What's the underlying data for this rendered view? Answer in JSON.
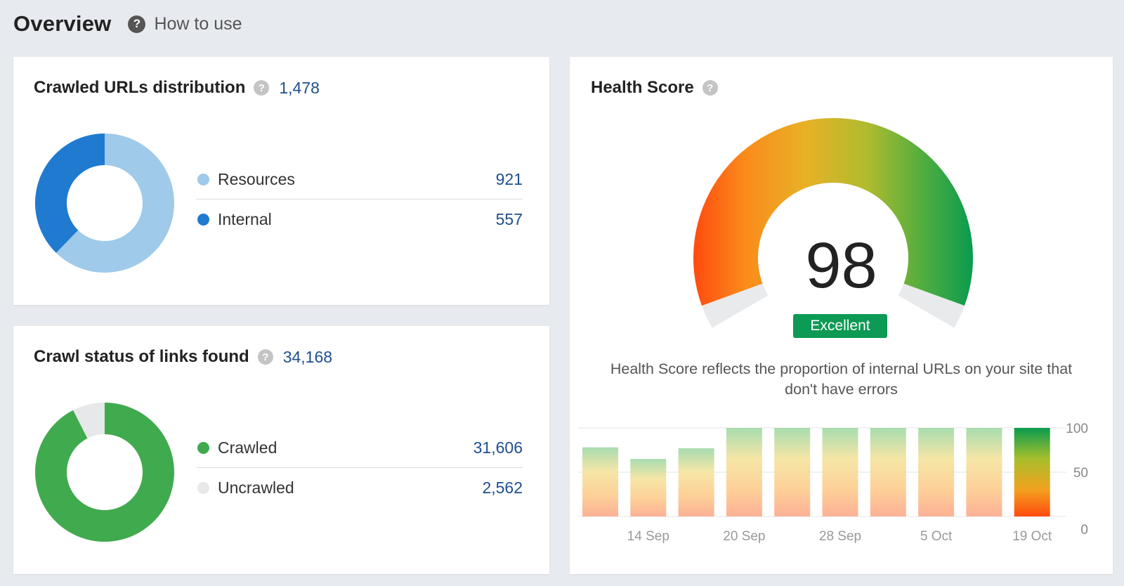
{
  "header": {
    "title": "Overview",
    "help_icon": "?",
    "how_to_use": "How to use"
  },
  "crawled_urls": {
    "title": "Crawled URLs distribution",
    "total": "1,478",
    "items": [
      {
        "label": "Resources",
        "value": "921",
        "count": 921,
        "color": "#9fcaea"
      },
      {
        "label": "Internal",
        "value": "557",
        "count": 557,
        "color": "#1f7ad0"
      }
    ]
  },
  "crawl_status": {
    "title": "Crawl status of links found",
    "total": "34,168",
    "items": [
      {
        "label": "Crawled",
        "value": "31,606",
        "count": 31606,
        "color": "#40aa4e"
      },
      {
        "label": "Uncrawled",
        "value": "2,562",
        "count": 2562,
        "color": "#e6e8ea"
      }
    ]
  },
  "health_score": {
    "title": "Health Score",
    "score": "98",
    "rating": "Excellent",
    "description": "Health Score reflects the proportion of internal URLs on your site that don't have errors",
    "colors": {
      "badge": "#0c9a55",
      "low": "#ff4a0f",
      "mid": "#e8b126",
      "high": "#0a9b4f"
    }
  },
  "chart_data": {
    "type": "bar",
    "values": [
      78,
      65,
      77,
      100,
      100,
      100,
      100,
      100,
      100,
      100
    ],
    "x_tick_labels": [
      "14 Sep",
      "20 Sep",
      "28 Sep",
      "5 Oct",
      "19 Oct"
    ],
    "y_tick_labels": [
      "100",
      "50",
      "0"
    ],
    "ylim": [
      0,
      100
    ],
    "grid": true,
    "highlight_last": true
  }
}
